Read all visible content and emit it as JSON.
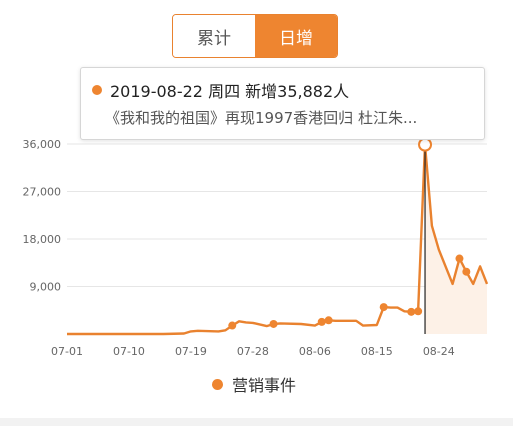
{
  "toggle": {
    "cumulative_label": "累计",
    "daily_label": "日增",
    "active": "daily"
  },
  "tooltip": {
    "headline": "2019-08-22 周四 新增35,882人",
    "event": "《我和我的祖国》再现1997香港回归 杜江朱..."
  },
  "legend": {
    "marketing_event_label": "营销事件"
  },
  "colors": {
    "accent": "#ee8530",
    "line": "#e9822f",
    "grid": "#e6e6e6",
    "axis_text": "#666666",
    "area_fill": "#fdf1e7"
  },
  "chart_data": {
    "type": "line",
    "title": "",
    "xlabel": "",
    "ylabel": "",
    "xlim": [
      "2019-07-01",
      "2019-08-31"
    ],
    "ylim": [
      0,
      36000
    ],
    "y_ticks": [
      {
        "value": 9000,
        "label": "9,000"
      },
      {
        "value": 18000,
        "label": "18,000"
      },
      {
        "value": 27000,
        "label": "27,000"
      },
      {
        "value": 36000,
        "label": "36,000"
      }
    ],
    "x_ticks": [
      {
        "date": "2019-07-01",
        "label": "07-01"
      },
      {
        "date": "2019-07-10",
        "label": "07-10"
      },
      {
        "date": "2019-07-19",
        "label": "07-19"
      },
      {
        "date": "2019-07-28",
        "label": "07-28"
      },
      {
        "date": "2019-08-06",
        "label": "08-06"
      },
      {
        "date": "2019-08-15",
        "label": "08-15"
      },
      {
        "date": "2019-08-24",
        "label": "08-24"
      }
    ],
    "grid": true,
    "highlight": {
      "date": "2019-08-22",
      "value": 35882
    },
    "series": [
      {
        "points": [
          [
            "2019-07-01",
            0
          ],
          [
            "2019-07-05",
            0
          ],
          [
            "2019-07-10",
            0
          ],
          [
            "2019-07-15",
            0
          ],
          [
            "2019-07-18",
            100
          ],
          [
            "2019-07-19",
            500
          ],
          [
            "2019-07-20",
            600
          ],
          [
            "2019-07-23",
            500
          ],
          [
            "2019-07-24",
            700
          ],
          [
            "2019-07-25",
            1600
          ],
          [
            "2019-07-26",
            2400
          ],
          [
            "2019-07-27",
            2200
          ],
          [
            "2019-07-28",
            2100
          ],
          [
            "2019-07-30",
            1500
          ],
          [
            "2019-07-31",
            1900
          ],
          [
            "2019-08-01",
            2000
          ],
          [
            "2019-08-04",
            1900
          ],
          [
            "2019-08-06",
            1600
          ],
          [
            "2019-08-07",
            2300
          ],
          [
            "2019-08-08",
            2600
          ],
          [
            "2019-08-09",
            2500
          ],
          [
            "2019-08-12",
            2500
          ],
          [
            "2019-08-13",
            1600
          ],
          [
            "2019-08-15",
            1700
          ],
          [
            "2019-08-16",
            5100
          ],
          [
            "2019-08-17",
            5000
          ],
          [
            "2019-08-18",
            5000
          ],
          [
            "2019-08-19",
            4300
          ],
          [
            "2019-08-20",
            4200
          ],
          [
            "2019-08-21",
            4300
          ],
          [
            "2019-08-22",
            35882
          ],
          [
            "2019-08-23",
            20500
          ],
          [
            "2019-08-24",
            16000
          ],
          [
            "2019-08-26",
            9500
          ],
          [
            "2019-08-27",
            14300
          ],
          [
            "2019-08-28",
            11800
          ],
          [
            "2019-08-29",
            9500
          ],
          [
            "2019-08-30",
            12800
          ],
          [
            "2019-08-31",
            9500
          ]
        ]
      }
    ],
    "marketing_events": [
      {
        "date": "2019-07-25",
        "value": 1600
      },
      {
        "date": "2019-07-31",
        "value": 1900
      },
      {
        "date": "2019-08-07",
        "value": 2300
      },
      {
        "date": "2019-08-08",
        "value": 2600
      },
      {
        "date": "2019-08-16",
        "value": 5100
      },
      {
        "date": "2019-08-20",
        "value": 4200
      },
      {
        "date": "2019-08-21",
        "value": 4300
      },
      {
        "date": "2019-08-27",
        "value": 14300
      },
      {
        "date": "2019-08-28",
        "value": 11800
      }
    ]
  }
}
